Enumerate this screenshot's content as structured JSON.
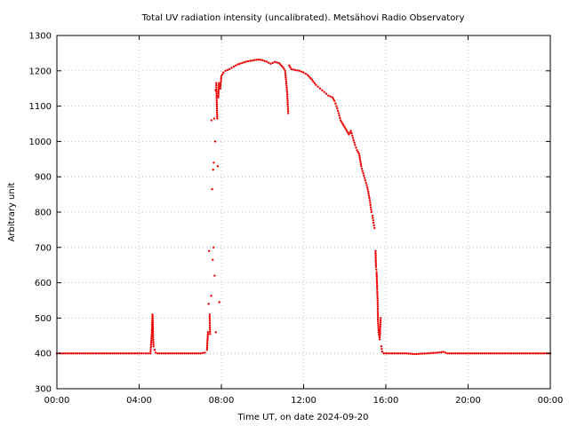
{
  "chart_data": {
    "type": "scatter",
    "title": "Total UV radiation intensity (uncalibrated). Metsähovi Radio Observatory",
    "xlabel": "Time UT, on date 2024-09-20",
    "ylabel": "Arbitrary unit",
    "x_unit": "hours UT",
    "xlim": [
      0,
      24
    ],
    "ylim": [
      300,
      1300
    ],
    "x_ticks": [
      0,
      4,
      8,
      12,
      16,
      20,
      24
    ],
    "x_tick_labels": [
      "00:00",
      "04:00",
      "08:00",
      "12:00",
      "16:00",
      "20:00",
      "00:00"
    ],
    "y_ticks": [
      300,
      400,
      500,
      600,
      700,
      800,
      900,
      1000,
      1100,
      1200,
      1300
    ],
    "y_tick_labels": [
      "300",
      "400",
      "500",
      "600",
      "700",
      "800",
      "900",
      "1000",
      "1100",
      "1200",
      "1300"
    ],
    "grid": true,
    "marker_color": "#ee0000",
    "series": [
      {
        "points": [
          [
            0.0,
            400
          ],
          [
            1.0,
            400
          ],
          [
            2.0,
            400
          ],
          [
            3.0,
            400
          ],
          [
            4.0,
            400
          ],
          [
            4.55,
            400
          ],
          [
            4.62,
            460
          ],
          [
            4.65,
            510
          ],
          [
            4.66,
            505
          ],
          [
            4.68,
            445
          ],
          [
            4.7,
            420
          ],
          [
            4.75,
            410
          ],
          [
            4.8,
            402
          ],
          [
            4.9,
            400
          ],
          [
            5.5,
            400
          ],
          [
            6.0,
            400
          ],
          [
            6.5,
            400
          ],
          [
            7.0,
            400
          ],
          [
            7.2,
            402
          ],
          [
            7.3,
            410
          ],
          [
            7.35,
            460
          ],
          [
            7.38,
            540
          ],
          [
            7.4,
            690
          ],
          [
            7.43,
            510
          ],
          [
            7.45,
            455
          ],
          [
            7.5,
            563
          ],
          [
            7.52,
            1060
          ],
          [
            7.55,
            865
          ],
          [
            7.58,
            665
          ],
          [
            7.6,
            920
          ],
          [
            7.62,
            700
          ],
          [
            7.63,
            940
          ],
          [
            7.65,
            1065
          ],
          [
            7.67,
            620
          ],
          [
            7.7,
            1000
          ],
          [
            7.72,
            1145
          ],
          [
            7.73,
            460
          ],
          [
            7.75,
            1165
          ],
          [
            7.78,
            1105
          ],
          [
            7.8,
            1065
          ],
          [
            7.82,
            930
          ],
          [
            7.85,
            1125
          ],
          [
            7.88,
            1165
          ],
          [
            7.9,
            545
          ],
          [
            7.95,
            1150
          ],
          [
            8.0,
            1185
          ],
          [
            8.1,
            1195
          ],
          [
            8.2,
            1200
          ],
          [
            8.4,
            1205
          ],
          [
            8.6,
            1212
          ],
          [
            8.8,
            1218
          ],
          [
            9.0,
            1222
          ],
          [
            9.2,
            1226
          ],
          [
            9.4,
            1228
          ],
          [
            9.6,
            1230
          ],
          [
            9.8,
            1232
          ],
          [
            10.0,
            1230
          ],
          [
            10.2,
            1226
          ],
          [
            10.4,
            1220
          ],
          [
            10.6,
            1225
          ],
          [
            10.8,
            1222
          ],
          [
            11.0,
            1210
          ],
          [
            11.1,
            1200
          ],
          [
            11.2,
            1140
          ],
          [
            11.25,
            1080
          ],
          [
            11.3,
            1215
          ],
          [
            11.4,
            1205
          ],
          [
            11.6,
            1202
          ],
          [
            11.8,
            1200
          ],
          [
            12.0,
            1195
          ],
          [
            12.2,
            1188
          ],
          [
            12.4,
            1175
          ],
          [
            12.6,
            1160
          ],
          [
            12.8,
            1150
          ],
          [
            13.0,
            1140
          ],
          [
            13.2,
            1130
          ],
          [
            13.4,
            1125
          ],
          [
            13.5,
            1115
          ],
          [
            13.6,
            1100
          ],
          [
            13.7,
            1080
          ],
          [
            13.8,
            1060
          ],
          [
            13.9,
            1050
          ],
          [
            14.0,
            1040
          ],
          [
            14.1,
            1030
          ],
          [
            14.2,
            1020
          ],
          [
            14.3,
            1030
          ],
          [
            14.4,
            1010
          ],
          [
            14.5,
            990
          ],
          [
            14.6,
            975
          ],
          [
            14.7,
            965
          ],
          [
            14.8,
            930
          ],
          [
            14.9,
            910
          ],
          [
            15.0,
            890
          ],
          [
            15.1,
            870
          ],
          [
            15.2,
            840
          ],
          [
            15.25,
            820
          ],
          [
            15.3,
            800
          ],
          [
            15.35,
            790
          ],
          [
            15.4,
            770
          ],
          [
            15.45,
            755
          ],
          [
            15.5,
            690
          ],
          [
            15.52,
            645
          ],
          [
            15.55,
            630
          ],
          [
            15.58,
            580
          ],
          [
            15.6,
            550
          ],
          [
            15.62,
            490
          ],
          [
            15.65,
            460
          ],
          [
            15.7,
            440
          ],
          [
            15.75,
            500
          ],
          [
            15.78,
            420
          ],
          [
            15.82,
            405
          ],
          [
            15.9,
            400
          ],
          [
            16.0,
            400
          ],
          [
            16.5,
            400
          ],
          [
            17.0,
            400
          ],
          [
            17.4,
            398
          ],
          [
            18.0,
            400
          ],
          [
            18.5,
            402
          ],
          [
            18.8,
            404
          ],
          [
            19.0,
            400
          ],
          [
            20.0,
            400
          ],
          [
            21.0,
            400
          ],
          [
            22.0,
            400
          ],
          [
            23.0,
            400
          ],
          [
            24.0,
            400
          ]
        ]
      }
    ]
  }
}
